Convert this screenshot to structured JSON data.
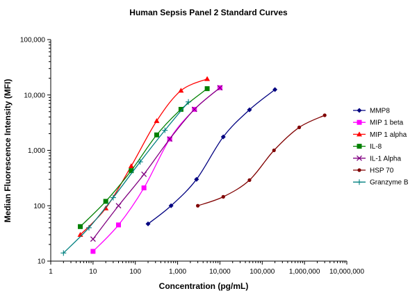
{
  "chart_data": {
    "type": "line",
    "title": "Human Sepsis Panel 2 Standard Curves",
    "xlabel": "Concentration (pg/mL)",
    "ylabel": "Median Fluorescence Intensity (MFI)",
    "x_scale": "log",
    "y_scale": "log",
    "xlim": [
      1,
      10000000
    ],
    "ylim": [
      10,
      100000
    ],
    "x_ticks": [
      1,
      10,
      100,
      1000,
      10000,
      100000,
      1000000,
      10000000
    ],
    "x_tick_labels": [
      "1",
      "10",
      "100",
      "1,000",
      "10,000",
      "100,000",
      "1,000,000",
      "10,000,000"
    ],
    "y_ticks": [
      10,
      100,
      1000,
      10000,
      100000
    ],
    "y_tick_labels": [
      "10",
      "100",
      "1,000",
      "10,000",
      "100,000"
    ],
    "grid": false,
    "legend_position": "right",
    "series": [
      {
        "name": "MMP8",
        "color": "#000080",
        "marker": "diamond",
        "x": [
          200,
          700,
          2800,
          12000,
          50000,
          200000
        ],
        "y": [
          47,
          100,
          300,
          1750,
          5400,
          12500
        ]
      },
      {
        "name": "MIP 1 beta",
        "color": "#ff00ff",
        "marker": "square",
        "x": [
          10,
          40,
          160,
          650,
          2500,
          10000
        ],
        "y": [
          15,
          45,
          210,
          1600,
          5500,
          13500
        ]
      },
      {
        "name": "MIP 1 alpha",
        "color": "#ff0000",
        "marker": "triangle",
        "x": [
          5,
          20,
          80,
          320,
          1200,
          5000
        ],
        "y": [
          30,
          90,
          520,
          3400,
          12000,
          19500
        ]
      },
      {
        "name": "IL-8",
        "color": "#008000",
        "marker": "square",
        "x": [
          5,
          20,
          80,
          320,
          1200,
          5000
        ],
        "y": [
          42,
          120,
          430,
          1900,
          5500,
          13000
        ]
      },
      {
        "name": "IL-1 Alpha",
        "color": "#800080",
        "marker": "x",
        "x": [
          10,
          40,
          160,
          650,
          2500,
          10000
        ],
        "y": [
          25,
          100,
          370,
          1600,
          5500,
          13500
        ]
      },
      {
        "name": "HSP 70",
        "color": "#800000",
        "marker": "circle",
        "x": [
          3000,
          12000,
          50000,
          190000,
          750000,
          3000000
        ],
        "y": [
          100,
          145,
          290,
          1000,
          2600,
          4300
        ]
      },
      {
        "name": "Granzyme B",
        "color": "#008080",
        "marker": "plus",
        "x": [
          2,
          8,
          30,
          130,
          500,
          1800
        ],
        "y": [
          14,
          40,
          140,
          620,
          2300,
          7500
        ]
      }
    ]
  }
}
